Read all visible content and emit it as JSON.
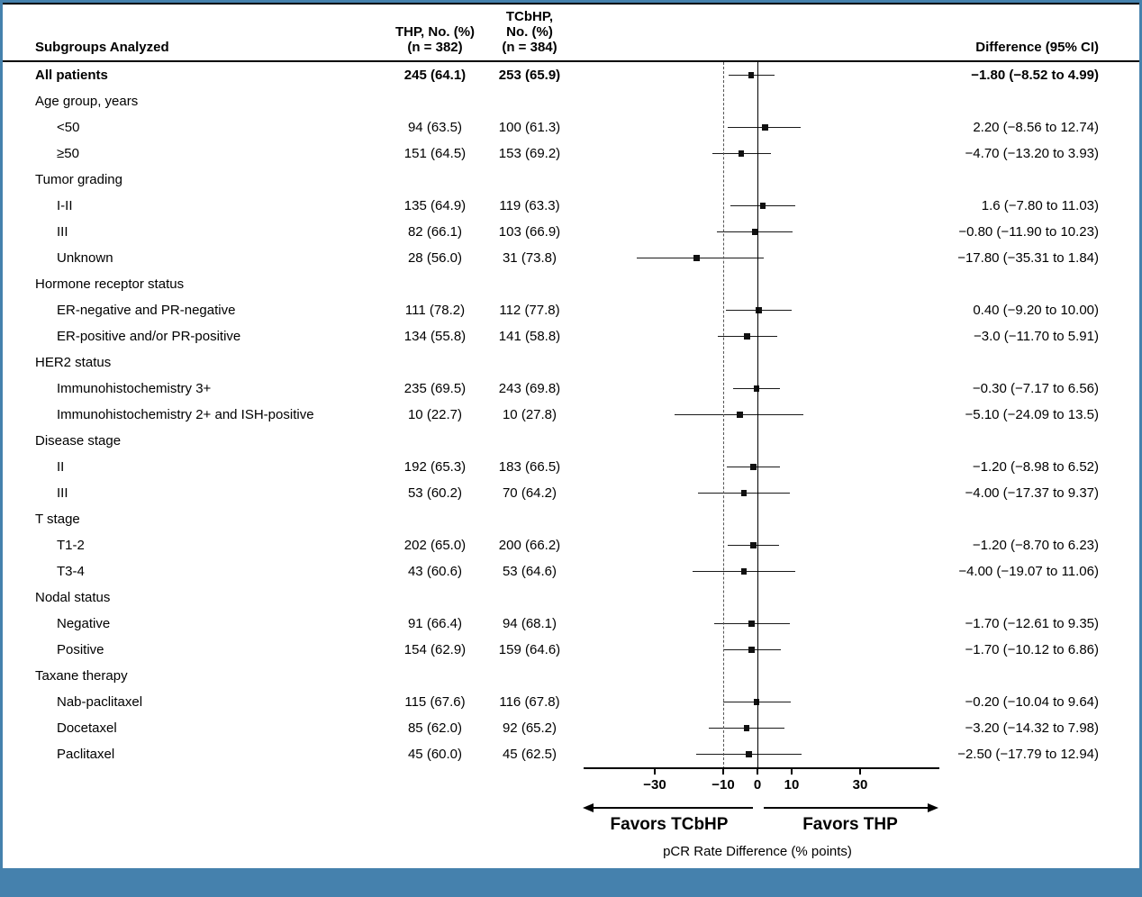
{
  "colors": {
    "frame_blue": "#4581ad"
  },
  "header": {
    "subgroup": "Subgroups Analyzed",
    "thp": "THP, No. (%)\n(n = 382)",
    "tcbhp": "TCbHP,\nNo. (%)\n(n = 384)",
    "difference": "Difference (95% CI)"
  },
  "chart_data": {
    "type": "forest",
    "title": "Subgroup analysis of pCR rate difference, THP vs TCbHP",
    "xlabel": "pCR Rate Difference (% points)",
    "x_ticks": [
      -30,
      -10,
      0,
      10,
      30
    ],
    "xlim": [
      -52,
      52
    ],
    "reference_lines": [
      {
        "x": 0,
        "style": "solid"
      },
      {
        "x": -10,
        "style": "dashed"
      }
    ],
    "favors_left": "Favors TCbHP",
    "favors_right": "Favors THP",
    "rows": [
      {
        "label": "All patients",
        "indent": 0,
        "bold": true,
        "thp": "245 (64.1)",
        "tcbhp": "253 (65.9)",
        "diff": "−1.80 (−8.52 to 4.99)",
        "est": -1.8,
        "lo": -8.52,
        "hi": 4.99
      },
      {
        "label": "Age group, years",
        "group": true
      },
      {
        "label": "<50",
        "indent": 1,
        "thp": "94 (63.5)",
        "tcbhp": "100 (61.3)",
        "diff": "2.20 (−8.56 to 12.74)",
        "est": 2.2,
        "lo": -8.56,
        "hi": 12.74
      },
      {
        "label": "≥50",
        "indent": 1,
        "thp": "151 (64.5)",
        "tcbhp": "153 (69.2)",
        "diff": "−4.70 (−13.20 to 3.93)",
        "est": -4.7,
        "lo": -13.2,
        "hi": 3.93
      },
      {
        "label": "Tumor grading",
        "group": true
      },
      {
        "label": "I-II",
        "indent": 1,
        "thp": "135 (64.9)",
        "tcbhp": "119 (63.3)",
        "diff": "1.6 (−7.80 to 11.03)",
        "est": 1.6,
        "lo": -7.8,
        "hi": 11.03
      },
      {
        "label": "III",
        "indent": 1,
        "thp": "82 (66.1)",
        "tcbhp": "103 (66.9)",
        "diff": "−0.80 (−11.90 to 10.23)",
        "est": -0.8,
        "lo": -11.9,
        "hi": 10.23
      },
      {
        "label": "Unknown",
        "indent": 1,
        "thp": "28 (56.0)",
        "tcbhp": "31 (73.8)",
        "diff": "−17.80 (−35.31 to 1.84)",
        "est": -17.8,
        "lo": -35.31,
        "hi": 1.84
      },
      {
        "label": "Hormone receptor status",
        "group": true
      },
      {
        "label": "ER-negative and PR-negative",
        "indent": 1,
        "thp": "111 (78.2)",
        "tcbhp": "112 (77.8)",
        "diff": "0.40 (−9.20 to 10.00)",
        "est": 0.4,
        "lo": -9.2,
        "hi": 10.0
      },
      {
        "label": "ER-positive and/or PR-positive",
        "indent": 1,
        "thp": "134 (55.8)",
        "tcbhp": "141 (58.8)",
        "diff": "−3.0 (−11.70 to 5.91)",
        "est": -3.0,
        "lo": -11.7,
        "hi": 5.91
      },
      {
        "label": "HER2 status",
        "group": true
      },
      {
        "label": "Immunohistochemistry 3+",
        "indent": 1,
        "thp": "235 (69.5)",
        "tcbhp": "243 (69.8)",
        "diff": "−0.30 (−7.17 to 6.56)",
        "est": -0.3,
        "lo": -7.17,
        "hi": 6.56
      },
      {
        "label": "Immunohistochemistry 2+ and ISH-positive",
        "indent": 1,
        "thp": "10 (22.7)",
        "tcbhp": "10 (27.8)",
        "diff": "−5.10 (−24.09 to 13.5)",
        "est": -5.1,
        "lo": -24.09,
        "hi": 13.5
      },
      {
        "label": "Disease stage",
        "group": true
      },
      {
        "label": "II",
        "indent": 1,
        "thp": "192 (65.3)",
        "tcbhp": "183 (66.5)",
        "diff": "−1.20 (−8.98 to 6.52)",
        "est": -1.2,
        "lo": -8.98,
        "hi": 6.52
      },
      {
        "label": "III",
        "indent": 1,
        "thp": "53 (60.2)",
        "tcbhp": "70 (64.2)",
        "diff": "−4.00 (−17.37 to 9.37)",
        "est": -4.0,
        "lo": -17.37,
        "hi": 9.37
      },
      {
        "label": "T stage",
        "group": true
      },
      {
        "label": "T1-2",
        "indent": 1,
        "thp": "202 (65.0)",
        "tcbhp": "200 (66.2)",
        "diff": "−1.20 (−8.70 to 6.23)",
        "est": -1.2,
        "lo": -8.7,
        "hi": 6.23
      },
      {
        "label": "T3-4",
        "indent": 1,
        "thp": "43 (60.6)",
        "tcbhp": "53 (64.6)",
        "diff": "−4.00 (−19.07 to 11.06)",
        "est": -4.0,
        "lo": -19.07,
        "hi": 11.06
      },
      {
        "label": "Nodal status",
        "group": true
      },
      {
        "label": "Negative",
        "indent": 1,
        "thp": "91 (66.4)",
        "tcbhp": "94 (68.1)",
        "diff": "−1.70 (−12.61 to 9.35)",
        "est": -1.7,
        "lo": -12.61,
        "hi": 9.35
      },
      {
        "label": "Positive",
        "indent": 1,
        "thp": "154 (62.9)",
        "tcbhp": "159 (64.6)",
        "diff": "−1.70 (−10.12 to 6.86)",
        "est": -1.7,
        "lo": -10.12,
        "hi": 6.86
      },
      {
        "label": "Taxane therapy",
        "group": true
      },
      {
        "label": "Nab-paclitaxel",
        "indent": 1,
        "thp": "115 (67.6)",
        "tcbhp": "116 (67.8)",
        "diff": "−0.20 (−10.04 to 9.64)",
        "est": -0.2,
        "lo": -10.04,
        "hi": 9.64
      },
      {
        "label": "Docetaxel",
        "indent": 1,
        "thp": "85 (62.0)",
        "tcbhp": "92 (65.2)",
        "diff": "−3.20 (−14.32 to 7.98)",
        "est": -3.2,
        "lo": -14.32,
        "hi": 7.98
      },
      {
        "label": "Paclitaxel",
        "indent": 1,
        "thp": "45 (60.0)",
        "tcbhp": "45 (62.5)",
        "diff": "−2.50 (−17.79 to 12.94)",
        "est": -2.5,
        "lo": -17.79,
        "hi": 12.94
      }
    ]
  }
}
